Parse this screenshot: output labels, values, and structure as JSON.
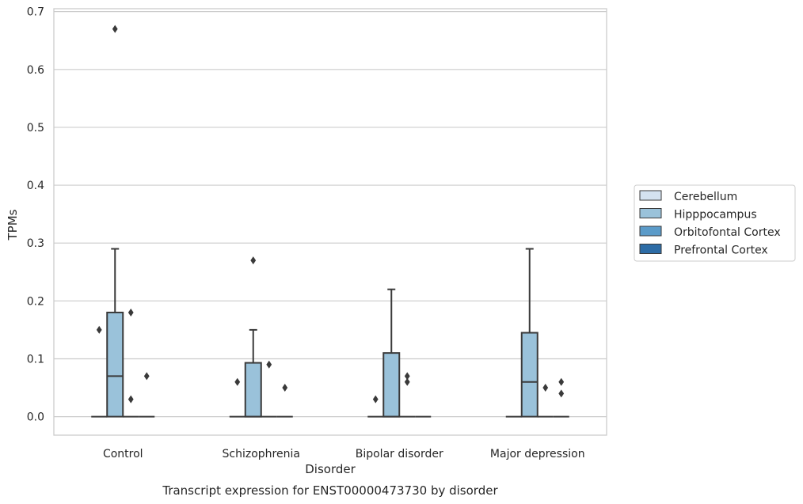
{
  "chart_data": {
    "type": "box",
    "caption": "Transcript expression for ENST00000473730 by disorder",
    "xlabel": "Disorder",
    "ylabel": "TPMs",
    "ylim": [
      -0.032,
      0.705
    ],
    "yticks": [
      0.0,
      0.1,
      0.2,
      0.3,
      0.4,
      0.5,
      0.6,
      0.7
    ],
    "grid": "horizontal",
    "legend_position": "right",
    "categories": [
      "Control",
      "Schizophrenia",
      "Bipolar disorder",
      "Major depression"
    ],
    "series": [
      {
        "name": "Cerebellum",
        "color": "#d4e2f0",
        "boxes": [
          {
            "category": "Control",
            "whisker_low": 0,
            "q1": 0,
            "median": 0,
            "q3": 0,
            "whisker_high": 0,
            "outliers": []
          },
          {
            "category": "Schizophrenia",
            "whisker_low": 0,
            "q1": 0,
            "median": 0,
            "q3": 0,
            "whisker_high": 0,
            "outliers": []
          },
          {
            "category": "Bipolar disorder",
            "whisker_low": 0,
            "q1": 0,
            "median": 0,
            "q3": 0,
            "whisker_high": 0,
            "outliers": []
          },
          {
            "category": "Major depression",
            "whisker_low": 0,
            "q1": 0,
            "median": 0,
            "q3": 0,
            "whisker_high": 0,
            "outliers": []
          }
        ]
      },
      {
        "name": "Hipppocampus",
        "color": "#9ac2da",
        "boxes": [
          {
            "category": "Control",
            "whisker_low": 0,
            "q1": 0,
            "median": 0.07,
            "q3": 0.18,
            "whisker_high": 0.29,
            "outliers": [
              0.67
            ]
          },
          {
            "category": "Schizophrenia",
            "whisker_low": 0,
            "q1": 0,
            "median": 0,
            "q3": 0.093,
            "whisker_high": 0.15,
            "outliers": [
              0.27
            ]
          },
          {
            "category": "Bipolar disorder",
            "whisker_low": 0,
            "q1": 0,
            "median": 0,
            "q3": 0.11,
            "whisker_high": 0.22,
            "outliers": []
          },
          {
            "category": "Major depression",
            "whisker_low": 0,
            "q1": 0,
            "median": 0.06,
            "q3": 0.145,
            "whisker_high": 0.29,
            "outliers": []
          }
        ]
      },
      {
        "name": "Orbitofontal Cortex",
        "color": "#5b9bc9",
        "boxes": [
          {
            "category": "Control",
            "whisker_low": 0,
            "q1": 0,
            "median": 0,
            "q3": 0,
            "whisker_high": 0,
            "outliers": [
              0.18,
              0.03
            ]
          },
          {
            "category": "Schizophrenia",
            "whisker_low": 0,
            "q1": 0,
            "median": 0,
            "q3": 0,
            "whisker_high": 0,
            "outliers": [
              0.09
            ]
          },
          {
            "category": "Bipolar disorder",
            "whisker_low": 0,
            "q1": 0,
            "median": 0,
            "q3": 0,
            "whisker_high": 0,
            "outliers": [
              0.07,
              0.06
            ]
          },
          {
            "category": "Major depression",
            "whisker_low": 0,
            "q1": 0,
            "median": 0,
            "q3": 0,
            "whisker_high": 0,
            "outliers": [
              0.05
            ]
          }
        ]
      },
      {
        "name": "Prefrontal Cortex",
        "color": "#2d6ca6",
        "boxes": [
          {
            "category": "Control",
            "whisker_low": 0,
            "q1": 0,
            "median": 0,
            "q3": 0,
            "whisker_high": 0,
            "outliers": [
              0.07
            ]
          },
          {
            "category": "Schizophrenia",
            "whisker_low": 0,
            "q1": 0,
            "median": 0,
            "q3": 0,
            "whisker_high": 0,
            "outliers": [
              0.05
            ]
          },
          {
            "category": "Bipolar disorder",
            "whisker_low": 0,
            "q1": 0,
            "median": 0,
            "q3": 0,
            "whisker_high": 0,
            "outliers": []
          },
          {
            "category": "Major depression",
            "whisker_low": 0,
            "q1": 0,
            "median": 0,
            "q3": 0,
            "whisker_high": 0,
            "outliers": [
              0.06,
              0.04
            ]
          }
        ]
      }
    ],
    "extra_outliers": [
      {
        "category": "Control",
        "series": "Cerebellum",
        "value": 0.15
      },
      {
        "category": "Schizophrenia",
        "series": "Cerebellum",
        "value": 0.06
      },
      {
        "category": "Bipolar disorder",
        "series": "Cerebellum",
        "value": 0.03
      }
    ]
  },
  "colors": {
    "grid": "#cccccc",
    "frame": "#cccccc",
    "edge": "#3a3a3a",
    "marker": "#3a3a3a"
  }
}
